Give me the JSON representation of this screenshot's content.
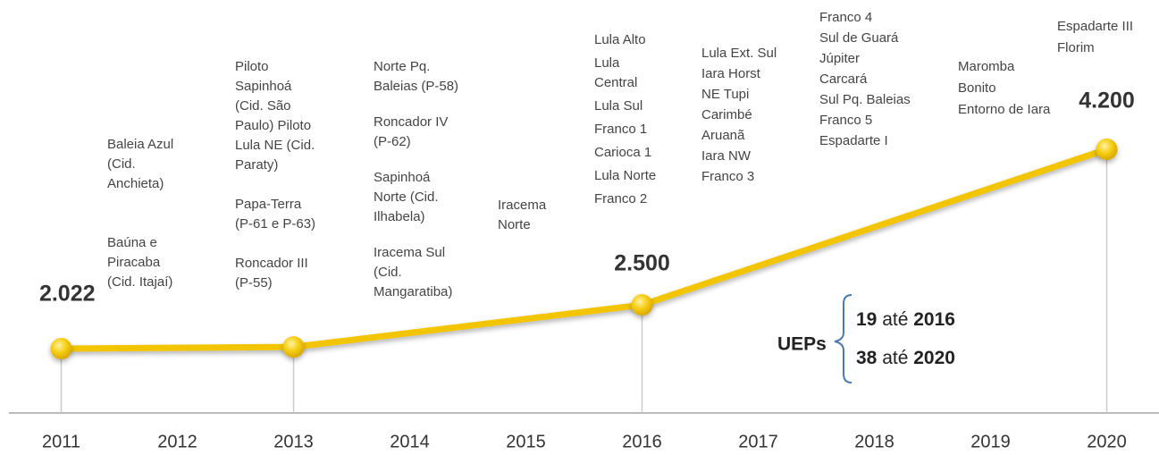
{
  "chart_data": {
    "type": "line",
    "x": [
      2011,
      2013,
      2016,
      2020
    ],
    "series": [
      {
        "color": "#f2c500",
        "values": [
          2022,
          2040,
          2500,
          4200
        ],
        "value_labels": [
          "2.022",
          null,
          "2.500",
          "4.200"
        ]
      }
    ],
    "xlim": [
      2010.55,
      2020.45
    ],
    "xticks": [
      2011,
      2012,
      2013,
      2014,
      2015,
      2016,
      2017,
      2018,
      2019,
      2020
    ],
    "annotations": [
      [
        [
          "Baleia Azul",
          "(Cid.",
          "Anchieta)"
        ],
        [
          "Baúna e",
          "Piracaba",
          "(Cid. Itajaí)"
        ]
      ],
      [
        [
          "Piloto",
          "Sapinhoá",
          "(Cid. São",
          "Paulo) Piloto",
          "Lula NE (Cid.",
          "Paraty)"
        ],
        [
          "Papa-Terra",
          "(P-61 e P-63)"
        ],
        [
          "Roncador III",
          "(P-55)"
        ]
      ],
      [
        [
          "Norte Pq.",
          "Baleias (P-58)"
        ],
        [
          "Roncador IV",
          "(P-62)"
        ],
        [
          "Sapinhoá",
          "Norte (Cid.",
          "Ilhabela)"
        ],
        [
          "Iracema Sul",
          "(Cid.",
          "Mangaratiba)"
        ]
      ],
      [
        [
          "Iracema",
          "Norte"
        ]
      ],
      [
        [
          "Lula  Alto"
        ],
        [
          "Lula",
          "Central"
        ],
        [
          "Lula Sul"
        ],
        [
          "Franco 1"
        ],
        [
          "Carioca 1"
        ],
        [
          "Lula Norte"
        ],
        [
          "Franco 2"
        ]
      ],
      [
        [
          "Lula Ext. Sul"
        ],
        [
          "Iara Horst"
        ],
        [
          "NE Tupi"
        ],
        [
          "Carimbé"
        ],
        [
          "Aruanã"
        ],
        [
          "Iara NW"
        ],
        [
          "Franco 3"
        ]
      ],
      [
        [
          "Franco 4"
        ],
        [
          "Sul de Guará"
        ],
        [
          "Júpiter"
        ],
        [
          "Carcará"
        ],
        [
          "Sul Pq. Baleias"
        ],
        [
          "Franco 5"
        ],
        [
          "Espadarte I"
        ]
      ],
      [
        [
          "Maromba"
        ],
        [
          "Bonito"
        ],
        [
          "Entorno de Iara"
        ]
      ],
      [
        [
          "Espadarte III"
        ],
        [
          "Florim"
        ]
      ]
    ],
    "uep": {
      "label": "UEPs",
      "lines": [
        {
          "count": "19",
          "word": "até",
          "year": "2016"
        },
        {
          "count": "38",
          "word": "até",
          "year": "2020"
        }
      ]
    }
  }
}
